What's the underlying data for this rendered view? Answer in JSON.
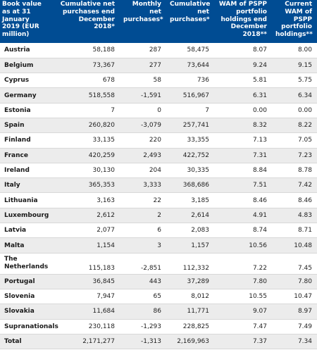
{
  "headers": [
    "Book value as at 31 January 2019 (EUR million)",
    "Cumulative net purchases end December 2018*",
    "Monthly net purchases*",
    "Cumulative net purchases*",
    "WAM of PSPP portfolio holdings end December 2018**",
    "Current WAM of PSPP portfolio holdings**"
  ],
  "rows": [
    {
      "country": "Austria",
      "cum_dec": "58,188",
      "monthly": "287",
      "cum": "58,475",
      "wam_dec": "8.07",
      "wam_cur": "8.00"
    },
    {
      "country": "Belgium",
      "cum_dec": "73,367",
      "monthly": "277",
      "cum": "73,644",
      "wam_dec": "9.24",
      "wam_cur": "9.15"
    },
    {
      "country": "Cyprus",
      "cum_dec": "678",
      "monthly": "58",
      "cum": "736",
      "wam_dec": "5.81",
      "wam_cur": "5.75"
    },
    {
      "country": "Germany",
      "cum_dec": "518,558",
      "monthly": "-1,591",
      "cum": "516,967",
      "wam_dec": "6.31",
      "wam_cur": "6.34"
    },
    {
      "country": "Estonia",
      "cum_dec": "7",
      "monthly": "0",
      "cum": "7",
      "wam_dec": "0.00",
      "wam_cur": "0.00"
    },
    {
      "country": "Spain",
      "cum_dec": "260,820",
      "monthly": "-3,079",
      "cum": "257,741",
      "wam_dec": "8.32",
      "wam_cur": "8.22"
    },
    {
      "country": "Finland",
      "cum_dec": "33,135",
      "monthly": "220",
      "cum": "33,355",
      "wam_dec": "7.13",
      "wam_cur": "7.05"
    },
    {
      "country": "France",
      "cum_dec": "420,259",
      "monthly": "2,493",
      "cum": "422,752",
      "wam_dec": "7.31",
      "wam_cur": "7.23"
    },
    {
      "country": "Ireland",
      "cum_dec": "30,130",
      "monthly": "204",
      "cum": "30,335",
      "wam_dec": "8.84",
      "wam_cur": "8.78"
    },
    {
      "country": "Italy",
      "cum_dec": "365,353",
      "monthly": "3,333",
      "cum": "368,686",
      "wam_dec": "7.51",
      "wam_cur": "7.42"
    },
    {
      "country": "Lithuania",
      "cum_dec": "3,163",
      "monthly": "22",
      "cum": "3,185",
      "wam_dec": "8.46",
      "wam_cur": "8.46"
    },
    {
      "country": "Luxembourg",
      "cum_dec": "2,612",
      "monthly": "2",
      "cum": "2,614",
      "wam_dec": "4.91",
      "wam_cur": "4.83"
    },
    {
      "country": "Latvia",
      "cum_dec": "2,077",
      "monthly": "6",
      "cum": "2,083",
      "wam_dec": "8.74",
      "wam_cur": "8.71"
    },
    {
      "country": "Malta",
      "cum_dec": "1,154",
      "monthly": "3",
      "cum": "1,157",
      "wam_dec": "10.56",
      "wam_cur": "10.48"
    },
    {
      "country": "The Netherlands",
      "cum_dec": "115,183",
      "monthly": "-2,851",
      "cum": "112,332",
      "wam_dec": "7.22",
      "wam_cur": "7.45"
    },
    {
      "country": "Portugal",
      "cum_dec": "36,845",
      "monthly": "443",
      "cum": "37,289",
      "wam_dec": "7.80",
      "wam_cur": "7.80"
    },
    {
      "country": "Slovenia",
      "cum_dec": "7,947",
      "monthly": "65",
      "cum": "8,012",
      "wam_dec": "10.55",
      "wam_cur": "10.47"
    },
    {
      "country": "Slovakia",
      "cum_dec": "11,684",
      "monthly": "86",
      "cum": "11,771",
      "wam_dec": "9.07",
      "wam_cur": "8.97"
    },
    {
      "country": "Supranationals",
      "cum_dec": "230,118",
      "monthly": "-1,293",
      "cum": "228,825",
      "wam_dec": "7.47",
      "wam_cur": "7.49"
    },
    {
      "country": "Total",
      "cum_dec": "2,171,277",
      "monthly": "-1,313",
      "cum": "2,169,963",
      "wam_dec": "7.37",
      "wam_cur": "7.34"
    }
  ]
}
